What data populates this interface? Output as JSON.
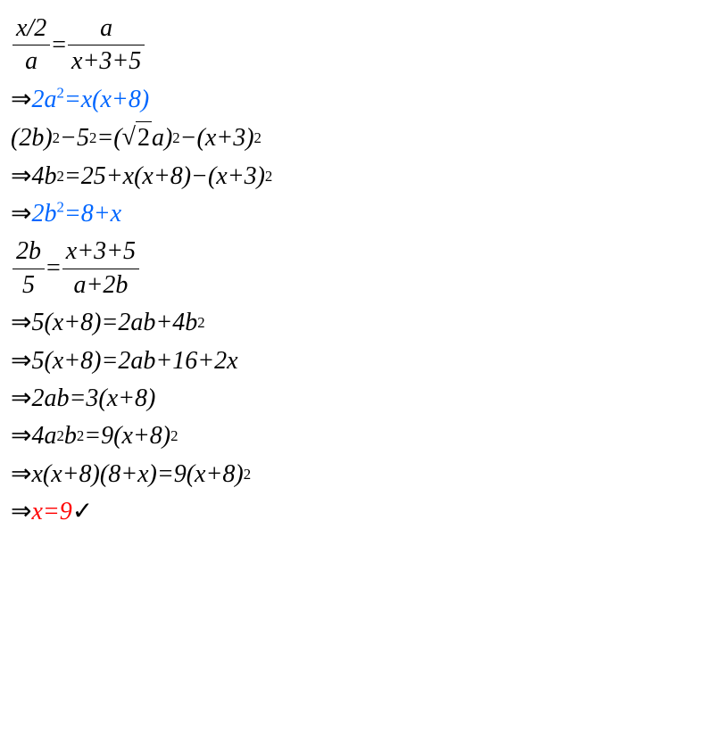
{
  "colors": {
    "black": "#000000",
    "blue": "#0066ff",
    "red": "#ff0000",
    "background": "#ffffff"
  },
  "typography": {
    "font_family": "Times New Roman, serif",
    "font_size_pt": 21,
    "sup_scale": 0.6
  },
  "lines": {
    "l1": {
      "frac1_num": "x/2",
      "frac1_den": "a",
      "eq": "=",
      "frac2_num": "a",
      "frac2_den": "x+3+5"
    },
    "l2": {
      "arrow": "⇒",
      "lhs": "2a",
      "exp1": "2",
      "eq": "=x(x+8)"
    },
    "l3": {
      "p1": "(2b)",
      "e1": "2",
      "p2": "−5",
      "e2": "2",
      "p3": "=(",
      "sqrt_arg": "2",
      "p4": "a)",
      "e3": "2",
      "p5": "−(x+3)",
      "e4": "2"
    },
    "l4": {
      "arrow": "⇒",
      "p1": "4b",
      "e1": "2",
      "p2": "=25+x(x+8)−(x+3)",
      "e2": "2"
    },
    "l5": {
      "arrow": "⇒",
      "p1": "2b",
      "e1": "2",
      "p2": "=8+x"
    },
    "l6": {
      "frac1_num": "2b",
      "frac1_den": "5",
      "eq": "=",
      "frac2_num": "x+3+5",
      "frac2_den": "a+2b"
    },
    "l7": {
      "arrow": "⇒",
      "p1": "5(x+8)=2ab+4b",
      "e1": "2"
    },
    "l8": {
      "arrow": "⇒",
      "p1": "5(x+8)=2ab+16+2x"
    },
    "l9": {
      "arrow": "⇒",
      "p1": "2ab=3(x+8)"
    },
    "l10": {
      "arrow": "⇒",
      "p1": "4a",
      "e1": "2",
      "p2": "b",
      "e2": "2",
      "p3": "=9(x+8)",
      "e3": "2"
    },
    "l11": {
      "arrow": "⇒",
      "p1": "x(x+8)(8+x)=9(x+8)",
      "e1": "2"
    },
    "l12": {
      "arrow": "⇒",
      "p1": "x=9",
      "check": " ✓"
    }
  }
}
